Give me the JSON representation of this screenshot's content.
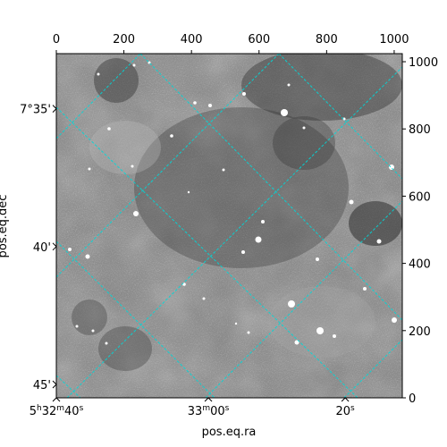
{
  "chart_data": {
    "type": "image",
    "xlabel": "pos.eq.ra",
    "ylabel": "pos.eq.dec",
    "pixel_axes": {
      "x_ticks": [
        "0",
        "200",
        "400",
        "600",
        "800",
        "1000"
      ],
      "y_ticks": [
        "0",
        "200",
        "400",
        "600",
        "800",
        "1000"
      ],
      "x_range": [
        0,
        1024
      ],
      "y_range": [
        0,
        1024
      ]
    },
    "world_axes": {
      "ra_ticks": [
        {
          "x": 0,
          "text_main": "5",
          "sup1": "h",
          "text2": "32",
          "sup2": "m",
          "text3": "40",
          "sup3": "s"
        },
        {
          "x": 450,
          "text_main": "33",
          "sup1": "m",
          "text2": "00",
          "sup2": "s",
          "text3": "",
          "sup3": ""
        },
        {
          "x": 855,
          "text_main": "20",
          "sup1": "s",
          "text2": "",
          "sup2": "",
          "text3": "",
          "sup3": ""
        }
      ],
      "dec_ticks": [
        {
          "y": 860,
          "text": "7°35'"
        },
        {
          "y": 450,
          "text": "40'"
        },
        {
          "y": 40,
          "text": "45'"
        }
      ]
    },
    "grid": true,
    "grid_color": "#00d8d8",
    "colormap": "gray"
  }
}
